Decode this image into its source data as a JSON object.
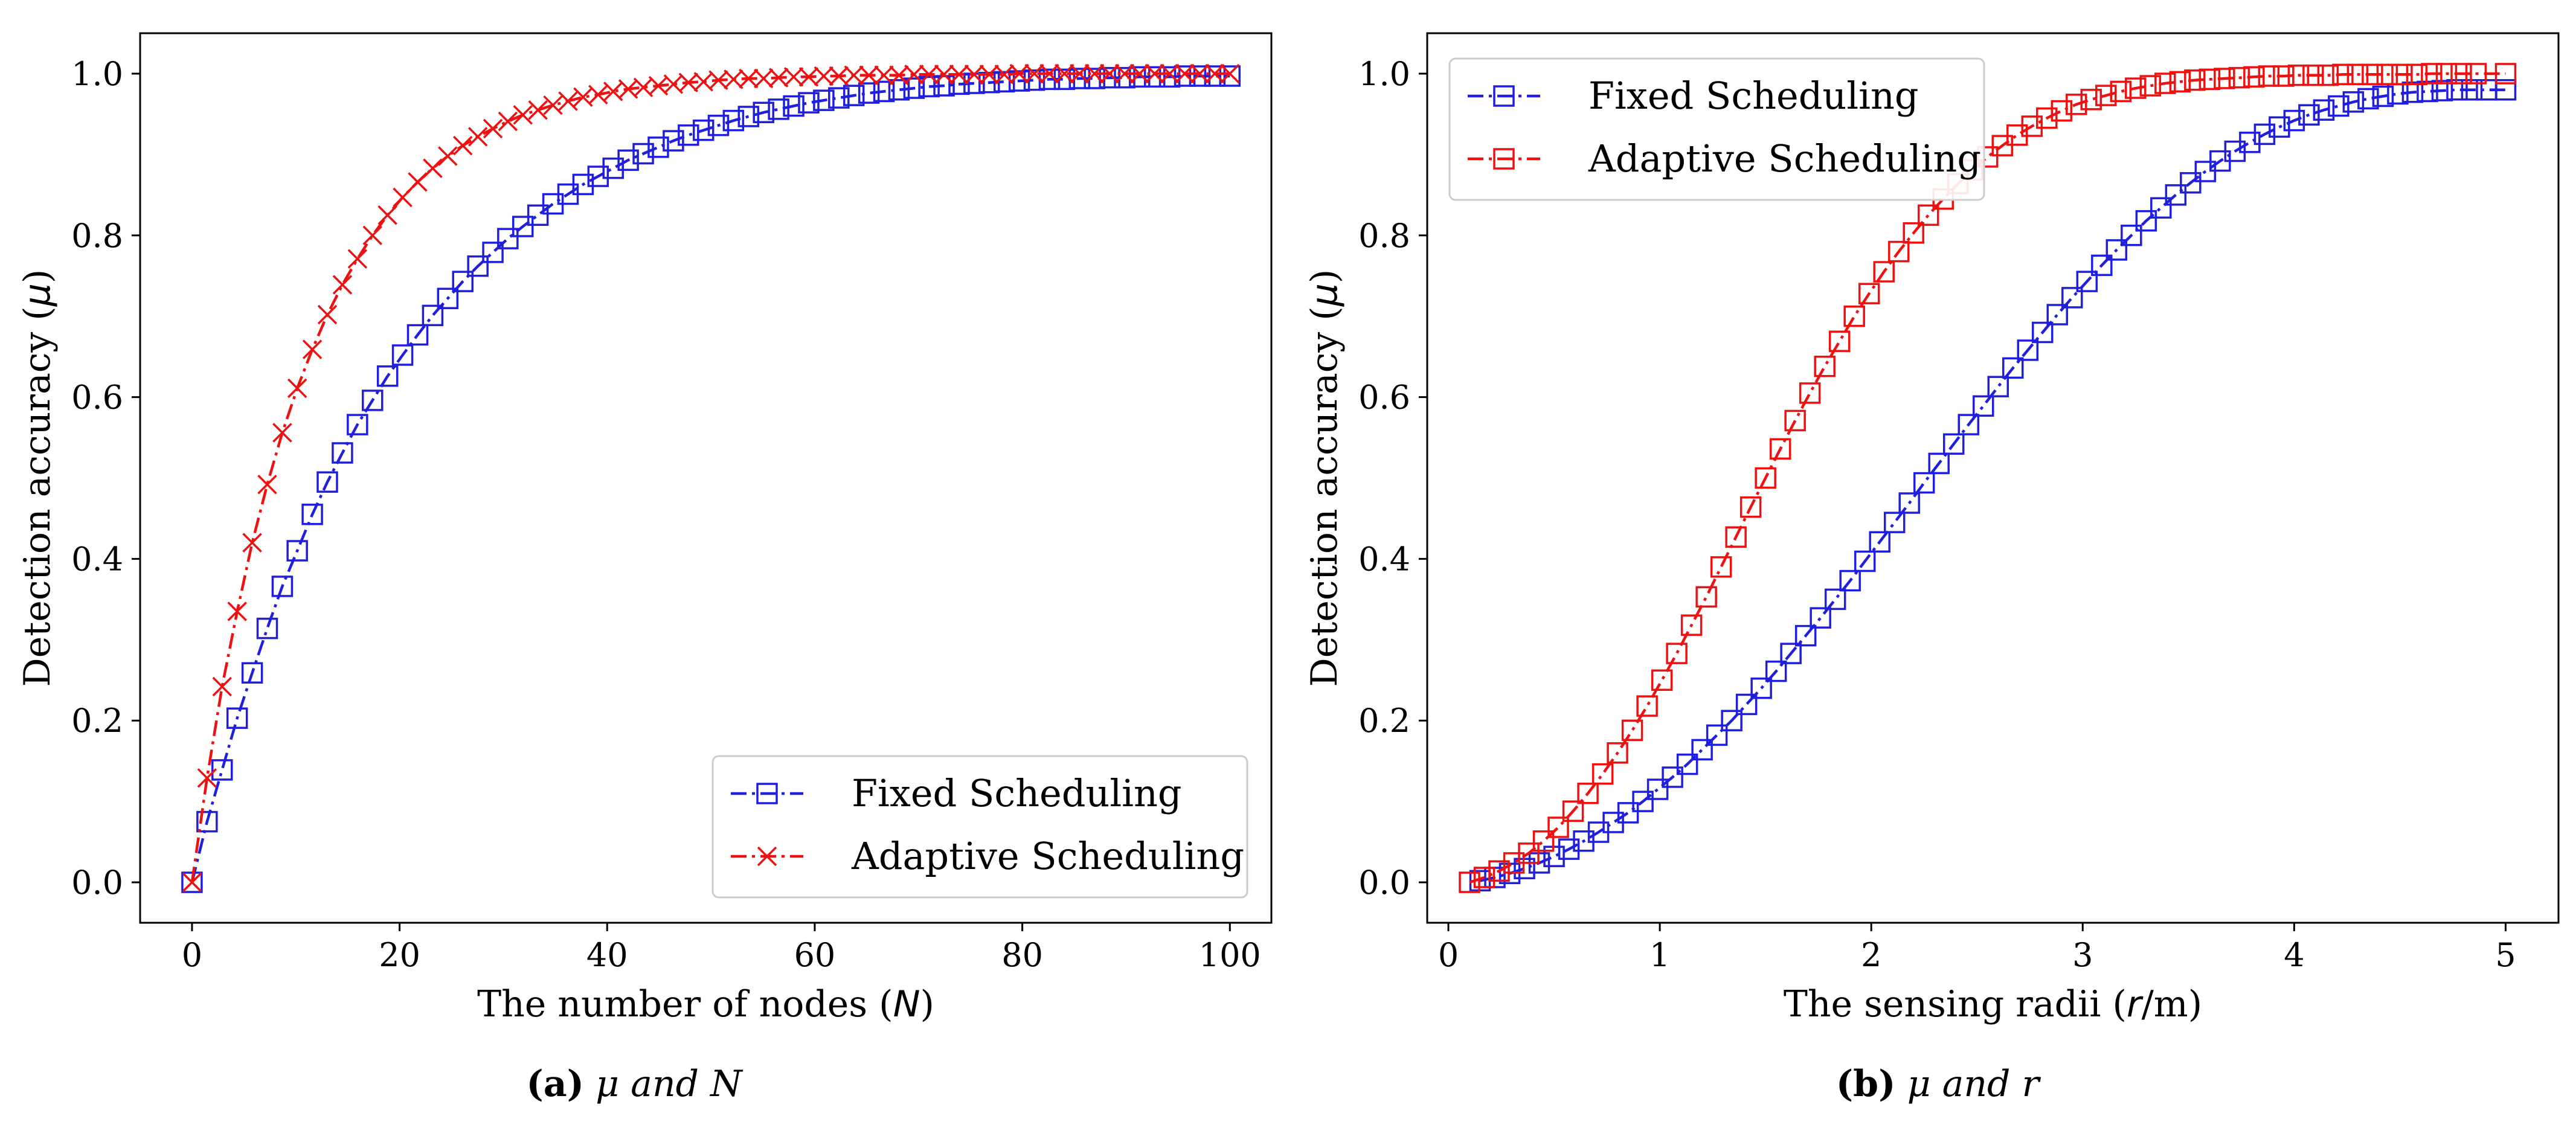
{
  "chart_data": [
    {
      "type": "line",
      "xlabel": "The number of nodes (N)",
      "xlabel_parts": [
        "The number of nodes (",
        "N",
        ")"
      ],
      "ylabel": "Detection accuracy (μ)",
      "ylabel_parts": [
        "Detection accuracy (",
        "μ",
        ")"
      ],
      "xlim": [
        -5,
        104
      ],
      "ylim": [
        -0.05,
        1.05
      ],
      "xticks": [
        0,
        20,
        40,
        60,
        80,
        100
      ],
      "xtick_labels": [
        "0",
        "20",
        "40",
        "60",
        "80",
        "100"
      ],
      "yticks": [
        0.0,
        0.2,
        0.4,
        0.6,
        0.8,
        1.0
      ],
      "ytick_labels": [
        "0.0",
        "0.2",
        "0.4",
        "0.6",
        "0.8",
        "1.0"
      ],
      "legend_position": "lower-right",
      "caption_letter": "(a)",
      "caption_rest": " μ and N",
      "series": [
        {
          "name": "Fixed Scheduling",
          "color": "#1f1fdd",
          "marker": "square",
          "x": [
            0,
            1.45,
            2.9,
            4.35,
            5.8,
            7.25,
            8.7,
            10.14,
            11.59,
            13.04,
            14.49,
            15.94,
            17.39,
            18.84,
            20.29,
            21.74,
            23.19,
            24.64,
            26.09,
            27.54,
            28.99,
            30.43,
            31.88,
            33.33,
            34.78,
            36.23,
            37.68,
            39.13,
            40.58,
            42.03,
            43.48,
            44.93,
            46.38,
            47.83,
            49.28,
            50.72,
            52.17,
            53.62,
            55.07,
            56.52,
            57.97,
            59.42,
            60.87,
            62.32,
            63.77,
            65.22,
            66.67,
            68.12,
            69.57,
            71.01,
            72.46,
            73.91,
            75.36,
            76.81,
            78.26,
            79.71,
            81.16,
            82.61,
            84.06,
            85.51,
            86.96,
            88.41,
            89.86,
            91.3,
            92.75,
            94.2,
            95.65,
            97.1,
            98.55,
            100
          ],
          "values": [
            0.0,
            0.075,
            0.139,
            0.203,
            0.259,
            0.314,
            0.366,
            0.41,
            0.455,
            0.495,
            0.531,
            0.566,
            0.596,
            0.626,
            0.652,
            0.677,
            0.701,
            0.722,
            0.743,
            0.762,
            0.779,
            0.796,
            0.811,
            0.825,
            0.839,
            0.851,
            0.863,
            0.873,
            0.883,
            0.893,
            0.901,
            0.909,
            0.917,
            0.924,
            0.93,
            0.936,
            0.942,
            0.947,
            0.952,
            0.956,
            0.96,
            0.964,
            0.967,
            0.97,
            0.973,
            0.976,
            0.978,
            0.98,
            0.982,
            0.984,
            0.985,
            0.987,
            0.988,
            0.989,
            0.99,
            0.991,
            0.992,
            0.993,
            0.993,
            0.994,
            0.994,
            0.995,
            0.995,
            0.996,
            0.996,
            0.996,
            0.997,
            0.997,
            0.997,
            0.997
          ]
        },
        {
          "name": "Adaptive Scheduling",
          "color": "#ee1111",
          "marker": "x",
          "x": [
            0,
            1.45,
            2.9,
            4.35,
            5.8,
            7.25,
            8.7,
            10.14,
            11.59,
            13.04,
            14.49,
            15.94,
            17.39,
            18.84,
            20.29,
            21.74,
            23.19,
            24.64,
            26.09,
            27.54,
            28.99,
            30.43,
            31.88,
            33.33,
            34.78,
            36.23,
            37.68,
            39.13,
            40.58,
            42.03,
            43.48,
            44.93,
            46.38,
            47.83,
            49.28,
            50.72,
            52.17,
            53.62,
            55.07,
            56.52,
            57.97,
            59.42,
            60.87,
            62.32,
            63.77,
            65.22,
            66.67,
            68.12,
            69.57,
            71.01,
            72.46,
            73.91,
            75.36,
            76.81,
            78.26,
            79.71,
            81.16,
            82.61,
            84.06,
            85.51,
            86.96,
            88.41,
            89.86,
            91.3,
            92.75,
            94.2,
            95.65,
            97.1,
            98.55,
            100
          ],
          "values": [
            0.0,
            0.129,
            0.242,
            0.335,
            0.42,
            0.492,
            0.556,
            0.611,
            0.659,
            0.702,
            0.739,
            0.771,
            0.8,
            0.825,
            0.847,
            0.866,
            0.883,
            0.898,
            0.911,
            0.922,
            0.932,
            0.941,
            0.949,
            0.955,
            0.961,
            0.966,
            0.971,
            0.974,
            0.978,
            0.981,
            0.983,
            0.985,
            0.987,
            0.989,
            0.99,
            0.992,
            0.993,
            0.994,
            0.994,
            0.995,
            0.996,
            0.996,
            0.997,
            0.997,
            0.998,
            0.998,
            0.998,
            0.998,
            0.999,
            0.999,
            0.999,
            0.999,
            0.999,
            0.999,
            0.999,
            1.0,
            1.0,
            1.0,
            1.0,
            1.0,
            1.0,
            1.0,
            1.0,
            1.0,
            1.0,
            1.0,
            1.0,
            1.0,
            1.0,
            1.0
          ]
        }
      ]
    },
    {
      "type": "line",
      "xlabel": "The sensing radii (r/m)",
      "xlabel_parts": [
        "The sensing radii (",
        "r",
        "/m)"
      ],
      "ylabel": "Detection accuracy (μ)",
      "ylabel_parts": [
        "Detection accuracy (",
        "μ",
        ")"
      ],
      "xlim": [
        -0.1,
        5.25
      ],
      "ylim": [
        -0.05,
        1.05
      ],
      "xticks": [
        0,
        1,
        2,
        3,
        4,
        5
      ],
      "xtick_labels": [
        "0",
        "1",
        "2",
        "3",
        "4",
        "5"
      ],
      "yticks": [
        0.0,
        0.2,
        0.4,
        0.6,
        0.8,
        1.0
      ],
      "ytick_labels": [
        "0.0",
        "0.2",
        "0.4",
        "0.6",
        "0.8",
        "1.0"
      ],
      "legend_position": "upper-left",
      "caption_letter": "(b)",
      "caption_rest": " μ and r",
      "series": [
        {
          "name": "Fixed Scheduling",
          "color": "#1f1fdd",
          "marker": "square",
          "x": [
            0.15,
            0.22,
            0.29,
            0.36,
            0.43,
            0.5,
            0.57,
            0.64,
            0.71,
            0.78,
            0.85,
            0.92,
            0.99,
            1.06,
            1.13,
            1.2,
            1.27,
            1.34,
            1.41,
            1.48,
            1.55,
            1.62,
            1.69,
            1.76,
            1.83,
            1.9,
            1.97,
            2.04,
            2.11,
            2.18,
            2.25,
            2.32,
            2.39,
            2.46,
            2.53,
            2.6,
            2.67,
            2.74,
            2.81,
            2.88,
            2.95,
            3.02,
            3.09,
            3.16,
            3.23,
            3.3,
            3.37,
            3.44,
            3.51,
            3.58,
            3.65,
            3.72,
            3.79,
            3.86,
            3.93,
            4.0,
            4.07,
            4.14,
            4.21,
            4.28,
            4.35,
            4.42,
            4.49,
            4.56,
            4.63,
            4.7,
            4.77,
            4.84,
            4.91,
            5.0
          ],
          "values": [
            0.002,
            0.006,
            0.011,
            0.017,
            0.024,
            0.032,
            0.041,
            0.051,
            0.062,
            0.074,
            0.086,
            0.1,
            0.115,
            0.13,
            0.146,
            0.164,
            0.182,
            0.2,
            0.22,
            0.24,
            0.261,
            0.283,
            0.305,
            0.327,
            0.35,
            0.373,
            0.397,
            0.421,
            0.445,
            0.469,
            0.494,
            0.518,
            0.542,
            0.566,
            0.589,
            0.613,
            0.636,
            0.658,
            0.68,
            0.702,
            0.723,
            0.743,
            0.763,
            0.782,
            0.8,
            0.818,
            0.834,
            0.85,
            0.865,
            0.879,
            0.892,
            0.904,
            0.915,
            0.925,
            0.934,
            0.942,
            0.949,
            0.955,
            0.96,
            0.965,
            0.969,
            0.972,
            0.975,
            0.977,
            0.978,
            0.979,
            0.98,
            0.98,
            0.98,
            0.98
          ]
        },
        {
          "name": "Adaptive Scheduling",
          "color": "#ee1111",
          "marker": "square",
          "x": [
            0.1,
            0.17,
            0.24,
            0.31,
            0.38,
            0.45,
            0.52,
            0.59,
            0.66,
            0.73,
            0.8,
            0.87,
            0.94,
            1.01,
            1.08,
            1.15,
            1.22,
            1.29,
            1.36,
            1.43,
            1.5,
            1.57,
            1.64,
            1.71,
            1.78,
            1.85,
            1.92,
            1.99,
            2.06,
            2.13,
            2.2,
            2.27,
            2.34,
            2.41,
            2.48,
            2.55,
            2.62,
            2.69,
            2.76,
            2.83,
            2.9,
            2.97,
            3.04,
            3.11,
            3.18,
            3.25,
            3.32,
            3.39,
            3.46,
            3.53,
            3.6,
            3.67,
            3.74,
            3.81,
            3.88,
            3.95,
            4.02,
            4.09,
            4.16,
            4.23,
            4.3,
            4.37,
            4.44,
            4.51,
            4.58,
            4.65,
            4.72,
            4.79,
            4.86,
            5.0
          ],
          "values": [
            0.0,
            0.006,
            0.014,
            0.024,
            0.036,
            0.051,
            0.068,
            0.088,
            0.11,
            0.134,
            0.16,
            0.188,
            0.218,
            0.25,
            0.283,
            0.318,
            0.353,
            0.39,
            0.427,
            0.464,
            0.5,
            0.536,
            0.571,
            0.605,
            0.638,
            0.669,
            0.7,
            0.728,
            0.755,
            0.78,
            0.803,
            0.825,
            0.845,
            0.864,
            0.881,
            0.897,
            0.911,
            0.924,
            0.935,
            0.945,
            0.954,
            0.962,
            0.968,
            0.973,
            0.978,
            0.982,
            0.985,
            0.988,
            0.99,
            0.992,
            0.993,
            0.994,
            0.995,
            0.996,
            0.997,
            0.997,
            0.998,
            0.998,
            0.998,
            0.999,
            0.999,
            0.999,
            0.999,
            0.999,
            0.999,
            1.0,
            1.0,
            1.0,
            1.0,
            1.0
          ]
        }
      ]
    }
  ]
}
